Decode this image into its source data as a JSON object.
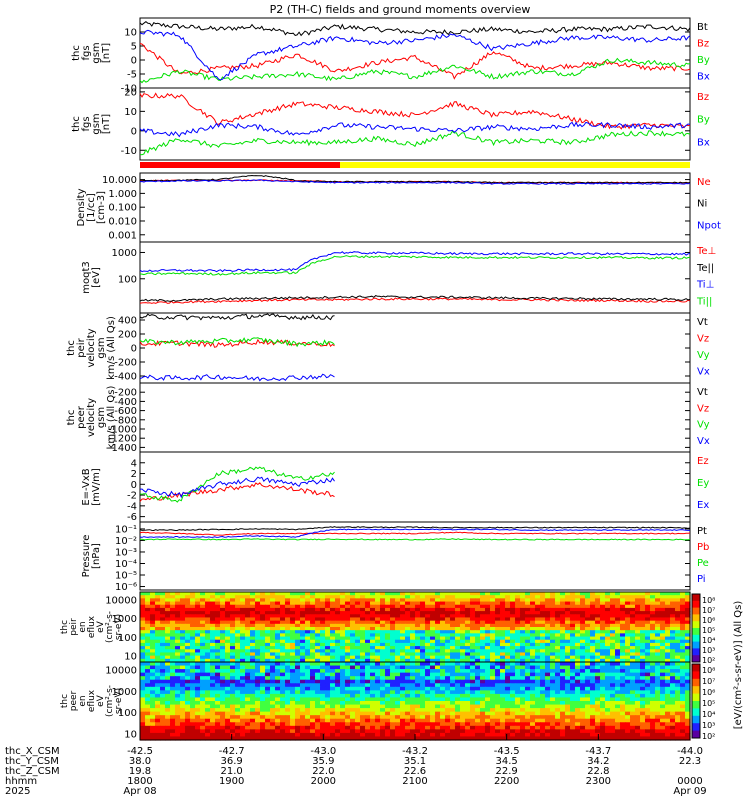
{
  "title": "P2 (TH-C) fields and ground moments overview",
  "colors": {
    "black": "#000000",
    "red": "#ff0000",
    "green": "#00e000",
    "blue": "#0000ff",
    "yellow": "#ffff00"
  },
  "chart_data": [
    {
      "type": "line",
      "ylabel": [
        "thc",
        "fgs",
        "gsm",
        "[nT]"
      ],
      "ylim": [
        -10,
        15
      ],
      "yticks": [
        "10",
        "5",
        "0",
        "-5",
        "-10"
      ],
      "series": [
        {
          "name": "Bt",
          "color": "black",
          "values": [
            13,
            12,
            11,
            12,
            9,
            12,
            11,
            10,
            10,
            11,
            10,
            11,
            11,
            12,
            11
          ]
        },
        {
          "name": "Bz",
          "color": "red",
          "values": [
            6,
            -5,
            -3,
            -2,
            2,
            -4,
            -1,
            1,
            -6,
            3,
            -3,
            -2,
            -1,
            -3,
            -3
          ]
        },
        {
          "name": "By",
          "color": "green",
          "values": [
            -8,
            -4,
            -7,
            -6,
            -5,
            -7,
            -4,
            -6,
            -2,
            -6,
            -4,
            -5,
            0,
            -1,
            -2
          ]
        },
        {
          "name": "Bx",
          "color": "blue",
          "values": [
            10,
            9,
            -7,
            2,
            5,
            8,
            6,
            7,
            9,
            4,
            6,
            8,
            8,
            7,
            8
          ]
        }
      ]
    },
    {
      "type": "line",
      "ylabel": [
        "thc",
        "fgs",
        "gsm",
        "[nT]"
      ],
      "ylim": [
        -15,
        22
      ],
      "yticks": [
        "20",
        "10",
        "0",
        "-10"
      ],
      "series": [
        {
          "name": "Bz",
          "color": "red",
          "values": [
            18,
            18,
            4,
            9,
            14,
            12,
            10,
            8,
            14,
            8,
            10,
            6,
            2,
            3,
            2
          ]
        },
        {
          "name": "By",
          "color": "green",
          "values": [
            -12,
            -4,
            -8,
            -5,
            -6,
            -6,
            -4,
            -7,
            -1,
            -6,
            -5,
            -6,
            -2,
            -1,
            -2
          ]
        },
        {
          "name": "Bx",
          "color": "blue",
          "values": [
            0,
            -2,
            3,
            2,
            -2,
            3,
            2,
            1,
            0,
            2,
            1,
            3,
            3,
            2,
            3
          ]
        }
      ]
    },
    {
      "type": "line",
      "ylabel": [
        "Density",
        "[1/cc]",
        "[cm-3]"
      ],
      "scale": "log",
      "ylim": [
        0.0003,
        30
      ],
      "yticks": [
        "10.000",
        "1.000",
        "0.100",
        "0.010",
        "0.001"
      ],
      "series": [
        {
          "name": "Ne",
          "color": "red",
          "values": [
            8,
            9,
            9,
            9,
            8,
            7,
            7,
            7,
            7,
            6,
            6,
            6,
            6,
            6,
            6
          ]
        },
        {
          "name": "Ni",
          "color": "black",
          "values": [
            8,
            9,
            10,
            20,
            8,
            7,
            7,
            7,
            7,
            6,
            6,
            6,
            6,
            6,
            6
          ]
        },
        {
          "name": "Npot",
          "color": "blue",
          "values": [
            7,
            8,
            8,
            9,
            7,
            6,
            6,
            6,
            6,
            5,
            5,
            5,
            5,
            5,
            5
          ]
        }
      ]
    },
    {
      "type": "line",
      "ylabel": [
        "moqt3",
        "[eV]"
      ],
      "scale": "log",
      "ylim": [
        5,
        2500
      ],
      "yticks": [
        "1000",
        "100"
      ],
      "series": [
        {
          "name": "Te⊥",
          "color": "red",
          "values": [
            12,
            13,
            14,
            15,
            16,
            16,
            17,
            17,
            17,
            16,
            16,
            15,
            15,
            14,
            14
          ]
        },
        {
          "name": "Te||",
          "color": "black",
          "values": [
            15,
            15,
            17,
            18,
            19,
            20,
            21,
            20,
            20,
            19,
            18,
            18,
            17,
            17,
            16
          ]
        },
        {
          "name": "Ti⊥",
          "color": "blue",
          "values": [
            200,
            210,
            200,
            220,
            220,
            1000,
            950,
            950,
            900,
            900,
            880,
            900,
            880,
            880,
            860
          ]
        },
        {
          "name": "Ti||",
          "color": "green",
          "values": [
            150,
            160,
            150,
            170,
            170,
            700,
            700,
            680,
            650,
            650,
            640,
            650,
            640,
            620,
            620
          ]
        }
      ]
    },
    {
      "type": "line",
      "ylabel": [
        "thc",
        "peir",
        "velocity",
        "gsm",
        "km/s (All Qs)"
      ],
      "ylim": [
        -500,
        500
      ],
      "yticks": [
        "400",
        "200",
        "0",
        "-200",
        "-400"
      ],
      "series": [
        {
          "name": "Vt",
          "color": "black",
          "values": [
            450,
            440,
            430,
            460,
            440,
            440,
            null,
            null,
            null,
            null,
            null,
            null,
            null,
            null,
            null
          ]
        },
        {
          "name": "Vz",
          "color": "red",
          "values": [
            60,
            70,
            40,
            90,
            70,
            50,
            null,
            null,
            null,
            null,
            null,
            null,
            null,
            null,
            null
          ]
        },
        {
          "name": "Vy",
          "color": "green",
          "values": [
            90,
            80,
            100,
            120,
            60,
            80,
            null,
            null,
            null,
            null,
            null,
            null,
            null,
            null,
            null
          ]
        },
        {
          "name": "Vx",
          "color": "blue",
          "values": [
            -420,
            -430,
            -410,
            -440,
            -420,
            -400,
            null,
            null,
            null,
            null,
            null,
            null,
            null,
            null,
            null
          ]
        }
      ]
    },
    {
      "type": "line",
      "ylabel": [
        "thc",
        "peer",
        "velocity",
        "gsm",
        "km/s (All Qs)"
      ],
      "ylim": [
        -1500,
        0
      ],
      "yticks": [
        "-200",
        "-400",
        "-600",
        "-800",
        "-1000",
        "-1200",
        "-1400"
      ],
      "series": [
        {
          "name": "Vt",
          "color": "black",
          "values": []
        },
        {
          "name": "Vz",
          "color": "red",
          "values": []
        },
        {
          "name": "Vy",
          "color": "green",
          "values": []
        },
        {
          "name": "Vx",
          "color": "blue",
          "values": []
        }
      ]
    },
    {
      "type": "line",
      "ylabel": [
        "E=-VxB",
        "[mV/m]"
      ],
      "ylim": [
        -7,
        6
      ],
      "yticks": [
        "4",
        "2",
        "0",
        "-2",
        "-4",
        "-6"
      ],
      "series": [
        {
          "name": "Ez",
          "color": "red",
          "values": [
            -3,
            -2,
            -1,
            0,
            -1,
            -2,
            null,
            null,
            null,
            null,
            null,
            null,
            null,
            null,
            null
          ]
        },
        {
          "name": "Ey",
          "color": "green",
          "values": [
            -2,
            -3,
            2,
            3,
            1,
            2,
            null,
            null,
            null,
            null,
            null,
            null,
            null,
            null,
            null
          ]
        },
        {
          "name": "Ex",
          "color": "blue",
          "values": [
            -1,
            -2,
            0,
            1,
            0,
            1,
            null,
            null,
            null,
            null,
            null,
            null,
            null,
            null,
            null
          ]
        }
      ]
    },
    {
      "type": "line",
      "ylabel": [
        "Pressure",
        "[nPa]"
      ],
      "scale": "log",
      "ylim": [
        5e-07,
        0.4
      ],
      "yticks": [
        "10⁻¹",
        "10⁻²",
        "10⁻³",
        "10⁻⁴",
        "10⁻⁵",
        "10⁻⁶"
      ],
      "series": [
        {
          "name": "Pt",
          "color": "black",
          "values": [
            0.08,
            0.08,
            0.09,
            0.1,
            0.09,
            0.15,
            0.14,
            0.14,
            0.13,
            0.13,
            0.13,
            0.13,
            0.13,
            0.13,
            0.12
          ]
        },
        {
          "name": "Pb",
          "color": "red",
          "values": [
            0.05,
            0.04,
            0.03,
            0.04,
            0.04,
            0.04,
            0.04,
            0.04,
            0.05,
            0.04,
            0.04,
            0.04,
            0.04,
            0.04,
            0.04
          ]
        },
        {
          "name": "Pe",
          "color": "green",
          "values": [
            0.012,
            0.013,
            0.012,
            0.013,
            0.012,
            0.013,
            0.012,
            0.012,
            0.013,
            0.012,
            0.012,
            0.012,
            0.012,
            0.012,
            0.012
          ]
        },
        {
          "name": "Pi",
          "color": "blue",
          "values": [
            0.02,
            0.02,
            0.02,
            0.025,
            0.02,
            0.09,
            0.09,
            0.09,
            0.09,
            0.09,
            0.08,
            0.08,
            0.08,
            0.08,
            0.08
          ]
        }
      ]
    },
    {
      "type": "heatmap",
      "ylabel": [
        "thc",
        "peir",
        "en",
        "eflux",
        "eV",
        "(cm²-s-",
        "sr-eV)"
      ],
      "yticks": [
        "10000",
        "1000",
        "100",
        "10"
      ]
    },
    {
      "type": "heatmap",
      "ylabel": [
        "thc",
        "peer",
        "en",
        "eflux",
        "eV",
        "(cm²-s-",
        "sr-eV)"
      ],
      "yticks": [
        "10000",
        "1000",
        "100",
        "10"
      ]
    }
  ],
  "colorbar": {
    "label": "[eV/(cm²-s-sr-eV)] (All Qs)",
    "ticks1": [
      "10⁸",
      "10⁷",
      "10⁶",
      "10⁵",
      "10⁴",
      "10³",
      "10²"
    ],
    "ticks2": [
      "10⁸",
      "10⁷",
      "10⁶",
      "10⁵",
      "10⁴",
      "10³",
      "10²"
    ]
  },
  "time_axis": {
    "row_labels": [
      "thc_X_CSM",
      "thc_Y_CSM",
      "thc_Z_CSM",
      "hhmm",
      "2025"
    ],
    "columns": [
      [
        "-42.5",
        "38.0",
        "19.8",
        "1800",
        "Apr 08"
      ],
      [
        "-42.7",
        "36.9",
        "21.0",
        "1900",
        ""
      ],
      [
        "-43.0",
        "35.9",
        "22.0",
        "2000",
        ""
      ],
      [
        "-43.2",
        "35.1",
        "22.6",
        "2100",
        ""
      ],
      [
        "-43.5",
        "34.5",
        "22.9",
        "2200",
        ""
      ],
      [
        "-43.7",
        "34.2",
        "22.8",
        "2300",
        ""
      ],
      [
        "-44.0",
        "22.3",
        "",
        "0000",
        "Apr 09"
      ]
    ]
  }
}
